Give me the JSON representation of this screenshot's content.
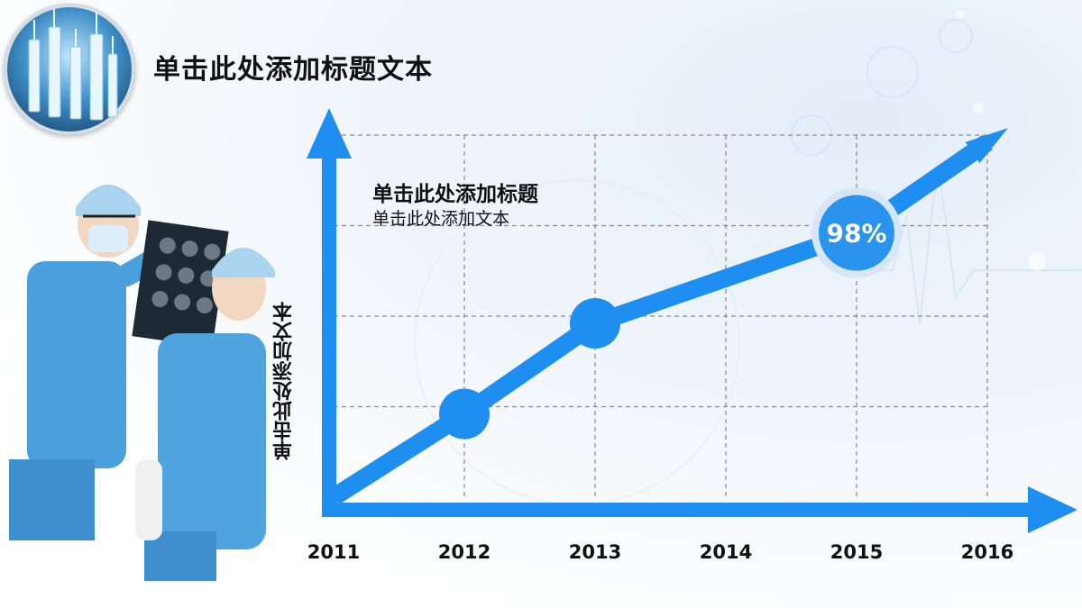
{
  "slide": {
    "title": "单击此处添加标题文本"
  },
  "chart_data": {
    "type": "line",
    "x": [
      "2011",
      "2012",
      "2013",
      "2014",
      "2015",
      "2016"
    ],
    "x_numeric": [
      2011,
      2012,
      2013,
      2014,
      2015,
      2016
    ],
    "ylabel": "单击此处添加文本",
    "subtitle": "单击此处添加标题",
    "annotation": "单击此处添加文本",
    "ylim": [
      0,
      100
    ],
    "grid": true,
    "series": [
      {
        "points": [
          {
            "x": 2011,
            "y": 0
          },
          {
            "x": 2012,
            "y": 23
          },
          {
            "x": 2013,
            "y": 48
          },
          {
            "x": 2015,
            "y": 73
          },
          {
            "x": 2016,
            "y": 98
          }
        ],
        "markers": [
          {
            "x": 2012,
            "y": 23
          },
          {
            "x": 2013,
            "y": 48
          }
        ]
      }
    ],
    "highlight": {
      "x": 2015,
      "y": 73,
      "label": "98%"
    },
    "colors": {
      "line": "#1e8ff0",
      "axis": "#1e8ff0",
      "badge": "#2a93ee",
      "grid": "#8a8a8a"
    }
  }
}
